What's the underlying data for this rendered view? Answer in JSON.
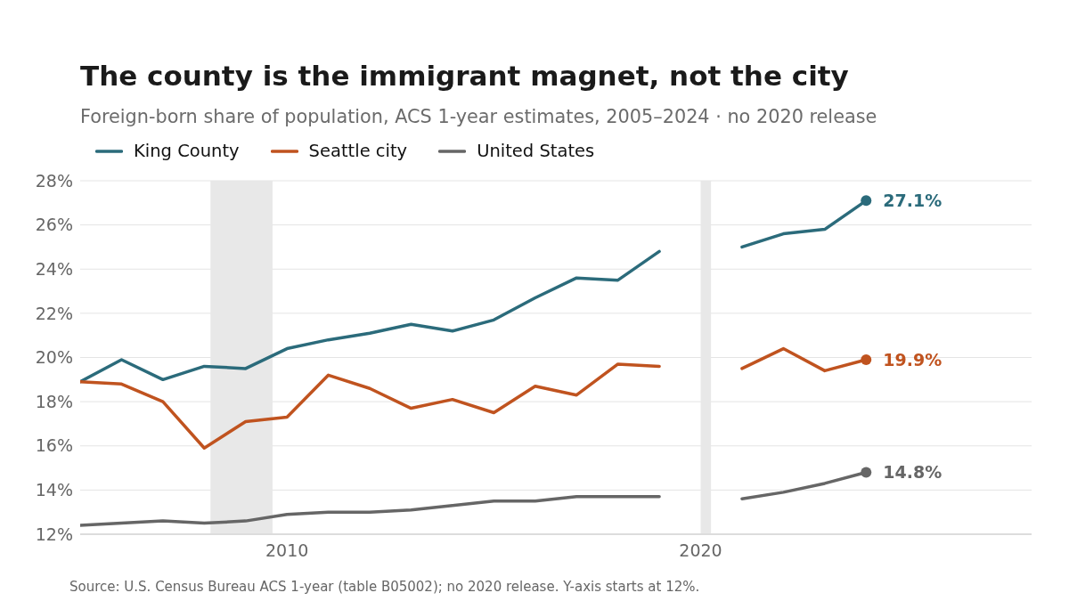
{
  "chart_data": {
    "type": "line",
    "title": "The county is the immigrant magnet, not the city",
    "subtitle": "Foreign-born share of population, ACS 1-year estimates, 2005–2024 · no 2020 release",
    "x": [
      2005,
      2006,
      2007,
      2008,
      2009,
      2010,
      2011,
      2012,
      2013,
      2014,
      2015,
      2016,
      2017,
      2018,
      2019,
      2020,
      2021,
      2022,
      2023,
      2024
    ],
    "series": [
      {
        "name": "King County",
        "color": "#2b6b7b",
        "values": [
          18.9,
          19.9,
          19.0,
          19.6,
          19.5,
          20.4,
          20.8,
          21.1,
          21.5,
          21.2,
          21.7,
          22.7,
          23.6,
          23.5,
          24.8,
          null,
          25.0,
          25.6,
          25.8,
          27.1
        ],
        "value_labels": [
          null,
          null,
          null,
          null,
          null,
          null,
          null,
          null,
          null,
          null,
          null,
          null,
          null,
          null,
          null,
          null,
          null,
          null,
          null,
          "27.1%"
        ]
      },
      {
        "name": "Seattle city",
        "color": "#c0531f",
        "values": [
          18.9,
          18.8,
          18.0,
          15.9,
          17.1,
          17.3,
          19.2,
          18.6,
          17.7,
          18.1,
          17.5,
          18.7,
          18.3,
          19.7,
          19.6,
          null,
          19.5,
          20.4,
          19.4,
          19.9
        ],
        "value_labels": [
          null,
          null,
          null,
          null,
          null,
          null,
          null,
          null,
          null,
          null,
          null,
          null,
          null,
          null,
          null,
          null,
          null,
          null,
          null,
          "19.9%"
        ]
      },
      {
        "name": "United States",
        "color": "#666666",
        "values": [
          12.4,
          12.5,
          12.6,
          12.5,
          12.6,
          12.9,
          13.0,
          13.0,
          13.1,
          13.3,
          13.5,
          13.5,
          13.7,
          13.7,
          13.7,
          null,
          13.6,
          13.9,
          14.3,
          14.8
        ],
        "value_labels": [
          null,
          null,
          null,
          null,
          null,
          null,
          null,
          null,
          null,
          null,
          null,
          null,
          null,
          null,
          null,
          null,
          null,
          null,
          null,
          "14.8%"
        ]
      }
    ],
    "xlim": [
      2005,
      2028
    ],
    "xticks": [
      2010,
      2020
    ],
    "ylim": [
      12,
      28
    ],
    "yticks": [
      {
        "value": 12,
        "label": "12%"
      },
      {
        "value": 14,
        "label": "14%"
      },
      {
        "value": 16,
        "label": "16%"
      },
      {
        "value": 18,
        "label": "18%"
      },
      {
        "value": 20,
        "label": "20%"
      },
      {
        "value": 22,
        "label": "22%"
      },
      {
        "value": 24,
        "label": "24%"
      },
      {
        "value": 26,
        "label": "26%"
      },
      {
        "value": 28,
        "label": "28%"
      }
    ],
    "grid": "y",
    "legend": "top left",
    "line_style": "solid",
    "bands": [
      {
        "axis": "x",
        "from": 2008.15,
        "to": 2009.65,
        "color": "#e8e8e8"
      },
      {
        "axis": "x",
        "from": 2020.0,
        "to": 2020.25,
        "color": "#e8e8e8"
      }
    ],
    "annotations": [
      "Source: U.S. Census Bureau ACS 1-year (table B05002); no 2020 release. Y-axis starts at 12%."
    ]
  }
}
